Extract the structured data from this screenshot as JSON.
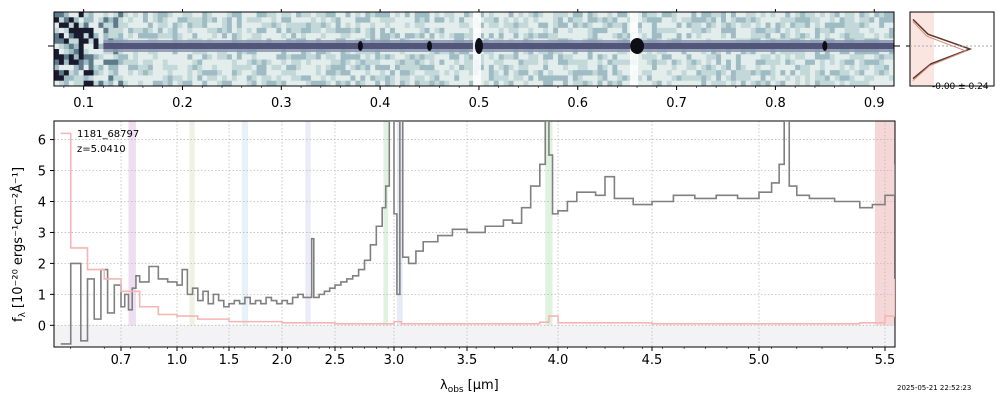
{
  "chart_data": [
    {
      "type": "heatmap",
      "title": "",
      "description_source": "2D spectrum",
      "x_tick_labels": [
        "0.1",
        "0.2",
        "0.3",
        "0.4",
        "0.5",
        "0.6",
        "0.7",
        "0.8",
        "0.9"
      ],
      "x_ticks": [
        0.1,
        0.2,
        0.3,
        0.4,
        0.5,
        0.6,
        0.7,
        0.8,
        0.9
      ],
      "xlim": [
        0.07,
        0.92
      ],
      "trace_bright_features": [
        0.38,
        0.45,
        0.5,
        0.66,
        0.85
      ],
      "colormap": [
        "#ffffff",
        "#cfe0df",
        "#9fbcc4",
        "#5d6a8a",
        "#1a1a2e"
      ]
    },
    {
      "type": "line",
      "title": "",
      "annotation": "-0.00 ± 0.24",
      "profile_y": [
        -2,
        -1,
        0,
        1,
        2
      ],
      "profile_values": [
        0.05,
        0.3,
        1.0,
        0.35,
        0.05
      ]
    },
    {
      "type": "line",
      "object_id": "1181_68797",
      "redshift_label": "z=5.0410",
      "xlabel_text": "λ",
      "xlabel_sub": "obs",
      "xlabel_unit": "[μm]",
      "ylabel_text": "f",
      "ylabel_sub": "λ",
      "ylabel_unit": "[10⁻²⁰ ergs⁻¹cm⁻²Å⁻¹]",
      "timestamp": "2025-05-21 22:52:23",
      "x_tick_values": [
        0.7,
        1.0,
        1.5,
        2.0,
        2.5,
        3.0,
        3.5,
        4.0,
        4.5,
        5.0,
        5.5
      ],
      "x_tick_labels": [
        "0.7",
        "1.0",
        "1.5",
        "2.0",
        "2.5",
        "3.0",
        "3.5",
        "4.0",
        "4.5",
        "5.0",
        "5.5"
      ],
      "y_tick_values": [
        0,
        1,
        2,
        3,
        4,
        5,
        6
      ],
      "y_tick_labels": [
        "0",
        "1",
        "2",
        "3",
        "4",
        "5",
        "6"
      ],
      "xlim": [
        0.5,
        5.52
      ],
      "ylim": [
        -0.7,
        6.6
      ],
      "grid": true,
      "series": [
        {
          "color": "#808080",
          "x": [
            0.52,
            0.55,
            0.58,
            0.6,
            0.62,
            0.64,
            0.66,
            0.68,
            0.7,
            0.72,
            0.74,
            0.76,
            0.78,
            0.8,
            0.85,
            0.9,
            0.95,
            1.0,
            1.05,
            1.1,
            1.15,
            1.2,
            1.25,
            1.3,
            1.35,
            1.4,
            1.45,
            1.5,
            1.55,
            1.6,
            1.65,
            1.7,
            1.75,
            1.8,
            1.85,
            1.9,
            1.95,
            2.0,
            2.05,
            2.1,
            2.15,
            2.2,
            2.25,
            2.28,
            2.3,
            2.35,
            2.4,
            2.45,
            2.5,
            2.55,
            2.6,
            2.65,
            2.7,
            2.75,
            2.8,
            2.85,
            2.9,
            2.93,
            2.96,
            3.0,
            3.02,
            3.04,
            3.06,
            3.1,
            3.15,
            3.2,
            3.3,
            3.4,
            3.5,
            3.6,
            3.7,
            3.75,
            3.8,
            3.85,
            3.9,
            3.93,
            3.95,
            3.97,
            4.0,
            4.05,
            4.1,
            4.2,
            4.25,
            4.3,
            4.4,
            4.5,
            4.6,
            4.7,
            4.8,
            4.9,
            5.0,
            5.05,
            5.08,
            5.1,
            5.12,
            5.15,
            5.2,
            5.3,
            5.4,
            5.45,
            5.5,
            5.52
          ],
          "y": [
            -0.6,
            2.0,
            -0.5,
            1.5,
            0.2,
            1.8,
            0.4,
            1.3,
            0.6,
            1.0,
            0.5,
            1.2,
            1.6,
            1.4,
            1.9,
            1.5,
            1.4,
            1.3,
            1.8,
            1.0,
            1.2,
            0.8,
            1.1,
            0.7,
            1.0,
            0.8,
            0.6,
            0.7,
            0.8,
            0.7,
            0.9,
            0.7,
            0.8,
            0.7,
            0.9,
            0.8,
            0.7,
            0.8,
            0.7,
            0.9,
            1.0,
            0.9,
            0.9,
            2.8,
            0.9,
            1.0,
            1.1,
            1.2,
            1.3,
            1.4,
            1.5,
            1.6,
            1.8,
            2.1,
            2.6,
            3.2,
            3.8,
            4.5,
            6.6,
            3.6,
            1.0,
            6.6,
            2.2,
            2.0,
            2.4,
            2.7,
            2.9,
            3.1,
            3.0,
            3.2,
            3.4,
            3.3,
            3.8,
            4.5,
            5.2,
            6.6,
            5.5,
            3.6,
            3.7,
            4.0,
            4.3,
            4.2,
            4.8,
            4.1,
            3.9,
            4.0,
            4.2,
            4.1,
            4.2,
            4.1,
            4.3,
            4.6,
            5.2,
            6.6,
            4.5,
            4.2,
            4.1,
            4.0,
            3.8,
            3.9,
            4.2,
            5.2
          ]
        },
        {
          "color": "#f5b5b5",
          "x": [
            0.52,
            0.55,
            0.6,
            0.65,
            0.7,
            0.8,
            0.9,
            1.0,
            1.2,
            1.5,
            2.0,
            2.5,
            2.9,
            3.0,
            3.05,
            3.5,
            3.9,
            3.95,
            4.0,
            4.5,
            5.0,
            5.4,
            5.5,
            5.52
          ],
          "y": [
            6.2,
            2.5,
            1.8,
            1.5,
            1.1,
            0.6,
            0.35,
            0.3,
            0.2,
            0.12,
            0.08,
            0.05,
            0.05,
            0.12,
            0.05,
            0.05,
            0.1,
            0.3,
            0.08,
            0.05,
            0.05,
            0.08,
            0.3,
            1.5
          ]
        }
      ],
      "bands": [
        {
          "x0": 0.74,
          "x1": 0.78,
          "color": "#e9d3ec"
        },
        {
          "x0": 1.12,
          "x1": 1.17,
          "color": "#e8eed8"
        },
        {
          "x0": 1.62,
          "x1": 1.68,
          "color": "#e1ecf6"
        },
        {
          "x0": 2.22,
          "x1": 2.27,
          "color": "#e4e4f4"
        },
        {
          "x0": 2.91,
          "x1": 2.95,
          "color": "#d7ecd4"
        },
        {
          "x0": 3.02,
          "x1": 3.06,
          "color": "#dde4f4"
        },
        {
          "x0": 3.93,
          "x1": 3.97,
          "color": "#d4ecd4"
        },
        {
          "x0": 5.46,
          "x1": 5.52,
          "color": "#f1c9c9"
        }
      ]
    }
  ]
}
